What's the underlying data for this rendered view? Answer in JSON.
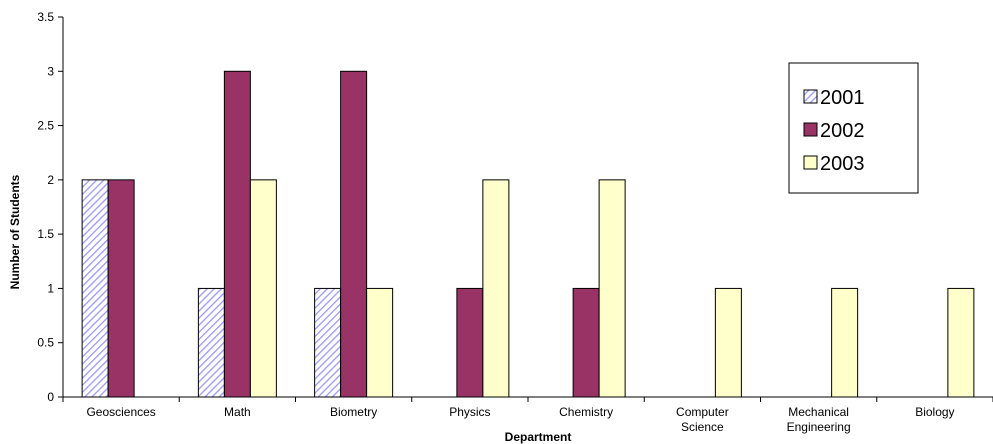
{
  "chart_data": {
    "type": "bar",
    "xlabel": "Department",
    "ylabel": "Number of Students",
    "ylim": [
      0,
      3.5
    ],
    "ytick_step": 0.5,
    "yticks": [
      "0",
      "0.5",
      "1",
      "1.5",
      "2",
      "2.5",
      "3",
      "3.5"
    ],
    "grid": false,
    "legend_position": "top-right",
    "categories": [
      [
        "Geosciences"
      ],
      [
        "Math"
      ],
      [
        "Biometry"
      ],
      [
        "Physics"
      ],
      [
        "Chemistry"
      ],
      [
        "Computer",
        "Science"
      ],
      [
        "Mechanical",
        "Engineering"
      ],
      [
        "Biology"
      ]
    ],
    "series": [
      {
        "name": "2001",
        "values": [
          2,
          1,
          1,
          0,
          0,
          0,
          0,
          0
        ],
        "fill": "hatch",
        "color": "#9999ff"
      },
      {
        "name": "2002",
        "values": [
          2,
          3,
          3,
          1,
          1,
          0,
          0,
          0
        ],
        "fill": "solid",
        "color": "#993366"
      },
      {
        "name": "2003",
        "values": [
          0,
          2,
          1,
          2,
          2,
          1,
          1,
          1
        ],
        "fill": "solid",
        "color": "#ffffcc"
      }
    ]
  }
}
